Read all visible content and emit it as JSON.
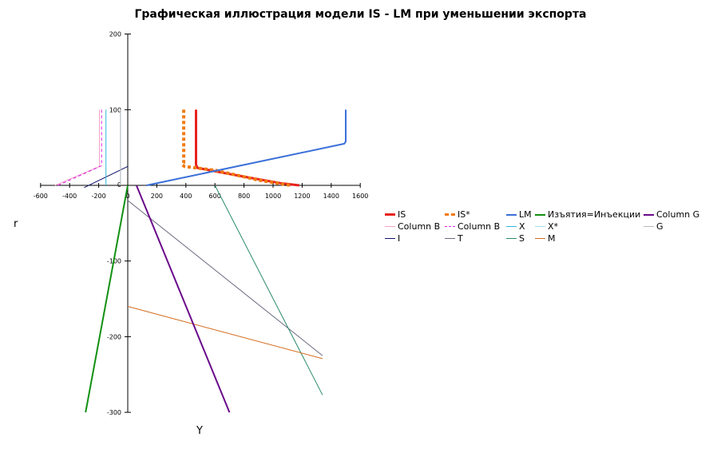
{
  "chart_data": {
    "type": "line",
    "title": "Графическая иллюстрация модели IS - LM при уменьшении экспорта",
    "xlabel": "Y",
    "ylabel": "r",
    "xlim": [
      -600,
      1600
    ],
    "ylim": [
      -300,
      200
    ],
    "xticks": [
      "-600",
      "-400",
      "-200",
      "0",
      "200",
      "400",
      "600",
      "800",
      "1000",
      "1200",
      "1400",
      "1600"
    ],
    "yticks": [
      "-300",
      "-200",
      "-100",
      "0",
      "100",
      "200"
    ],
    "grid": false,
    "legend_position": "right",
    "series": [
      {
        "name": "IS",
        "color": "#e8221b",
        "width": 3,
        "dash": "",
        "x": [
          470,
          470,
          480,
          700,
          900,
          1050,
          1180
        ],
        "y": [
          100,
          27,
          23,
          15,
          8,
          3,
          0
        ]
      },
      {
        "name": "Column B",
        "color": "#f5a0c8",
        "width": 1,
        "dash": "",
        "x": [
          -195,
          -195,
          -500
        ],
        "y": [
          100,
          25,
          0
        ]
      },
      {
        "name": "I",
        "color": "#10106e",
        "width": 1,
        "dash": "",
        "x": [
          0,
          -300
        ],
        "y": [
          25,
          -3
        ]
      },
      {
        "name": "IS*",
        "color": "#f07b11",
        "width": 4,
        "dash": "4,3",
        "x": [
          385,
          385,
          375,
          390,
          600,
          900,
          1120
        ],
        "y": [
          100,
          30,
          27,
          25,
          20,
          7,
          0
        ]
      },
      {
        "name": "Column B",
        "color": "#e020e0",
        "width": 1,
        "dash": "4,3",
        "x": [
          -180,
          -180,
          -480
        ],
        "y": [
          100,
          26,
          0
        ]
      },
      {
        "name": "T",
        "color": "#6a6a80",
        "width": 1,
        "dash": "",
        "x": [
          0,
          1340
        ],
        "y": [
          -20,
          -225
        ]
      },
      {
        "name": "LM",
        "color": "#3a6fd8",
        "width": 2,
        "dash": "",
        "x": [
          130,
          1490,
          1500,
          1500
        ],
        "y": [
          0,
          55,
          58,
          100
        ]
      },
      {
        "name": "X",
        "color": "#30b8d8",
        "width": 1,
        "dash": "",
        "x": [
          -150,
          -150
        ],
        "y": [
          100,
          0
        ]
      },
      {
        "name": "S",
        "color": "#2a8a68",
        "width": 1,
        "dash": "",
        "x": [
          600,
          1340
        ],
        "y": [
          0,
          -277
        ]
      },
      {
        "name": "Изъятия=Инъекции",
        "color": "#119011",
        "width": 2,
        "dash": "",
        "x": [
          0,
          -290
        ],
        "y": [
          0,
          -300
        ]
      },
      {
        "name": "X*",
        "color": "#a0e0f0",
        "width": 1,
        "dash": "",
        "x": [
          -50,
          -50
        ],
        "y": [
          100,
          0
        ]
      },
      {
        "name": "M",
        "color": "#d46a1a",
        "width": 1,
        "dash": "",
        "x": [
          0,
          1340
        ],
        "y": [
          -160,
          -229
        ]
      },
      {
        "name": "Column G",
        "color": "#6a0a8a",
        "width": 2,
        "dash": "",
        "x": [
          60,
          700
        ],
        "y": [
          0,
          -300
        ]
      },
      {
        "name": "G",
        "color": "#b8b8b8",
        "width": 1,
        "dash": "",
        "x": [
          -50,
          -50
        ],
        "y": [
          100,
          0
        ]
      }
    ]
  }
}
